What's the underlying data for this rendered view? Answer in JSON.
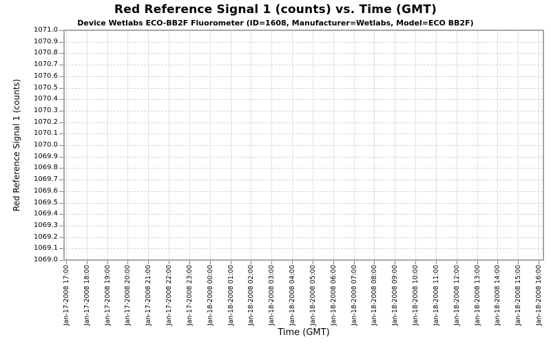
{
  "chart": {
    "title": "Red Reference Signal 1 (counts) vs. Time (GMT)",
    "subtitle": "Device Wetlabs ECO-BB2F Fluorometer (ID=1608, Manufacturer=Wetlabs, Model=ECO BB2F)",
    "x_axis_label": "Time (GMT)",
    "y_axis_label": "Red Reference Signal 1 (counts)"
  },
  "chart_data": {
    "type": "line",
    "title": "Red Reference Signal 1 (counts) vs. Time (GMT)",
    "subtitle": "Device Wetlabs ECO-BB2F Fluorometer (ID=1608, Manufacturer=Wetlabs, Model=ECO BB2F)",
    "xlabel": "Time (GMT)",
    "ylabel": "Red Reference Signal 1 (counts)",
    "ylim": [
      1069.0,
      1071.0
    ],
    "y_tick_interval": 0.1,
    "y_tick_labels": [
      "1071.0",
      "1070.9",
      "1070.8",
      "1070.7",
      "1070.6",
      "1070.5",
      "1070.4",
      "1070.3",
      "1070.2",
      "1070.1",
      "1070.0",
      "1069.9",
      "1069.8",
      "1069.7",
      "1069.6",
      "1069.5",
      "1069.4",
      "1069.3",
      "1069.2",
      "1069.1",
      "1069.0"
    ],
    "x_tick_labels": [
      "Jan-17-2008 17:00",
      "Jan-17-2008 18:00",
      "Jan-17-2008 19:00",
      "Jan-17-2008 20:00",
      "Jan-17-2008 21:00",
      "Jan-17-2008 22:00",
      "Jan-17-2008 23:00",
      "Jan-18-2008 00:00",
      "Jan-18-2008 01:00",
      "Jan-18-2008 02:00",
      "Jan-18-2008 03:00",
      "Jan-18-2008 04:00",
      "Jan-18-2008 05:00",
      "Jan-18-2008 06:00",
      "Jan-18-2008 07:00",
      "Jan-18-2008 08:00",
      "Jan-18-2008 09:00",
      "Jan-18-2008 10:00",
      "Jan-18-2008 11:00",
      "Jan-18-2008 12:00",
      "Jan-18-2008 13:00",
      "Jan-18-2008 14:00",
      "Jan-18-2008 15:00",
      "Jan-18-2008 16:00"
    ],
    "series": [],
    "grid": "on",
    "legend": "none"
  },
  "colors": {
    "background": "#ffffff",
    "text": "#000000",
    "plot_border": "#a6a6a6",
    "grid_horizontal": "#d0d0d0",
    "grid_vertical": "#e2e2e2",
    "tick": "#808080"
  }
}
